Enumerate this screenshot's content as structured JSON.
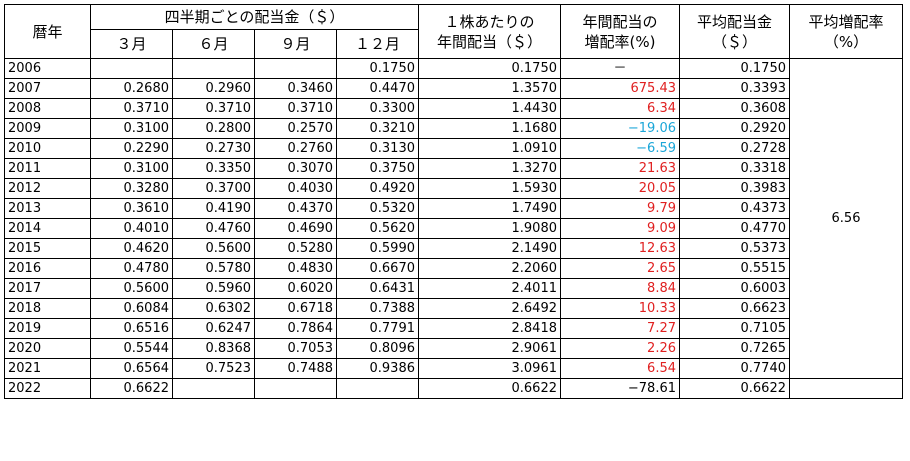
{
  "headers": {
    "year": "暦年",
    "quarterly_group": "四半期ごとの配当金（＄）",
    "q_mar": "３月",
    "q_jun": "６月",
    "q_sep": "９月",
    "q_dec": "１２月",
    "annual_line1": "１株あたりの",
    "annual_line2": "年間配当（＄）",
    "growth_line1": "年間配当の",
    "growth_line2": "増配率(%)",
    "avg_div_line1": "平均配当金",
    "avg_div_line2": "（＄）",
    "avg_growth_line1": "平均増配率",
    "avg_growth_line2": "（%）"
  },
  "avg_growth_value": "6.56",
  "colors": {
    "positive": "#e02020",
    "negative": "#1aa6d8",
    "neutral": "#000000"
  },
  "rows": [
    {
      "year": "2006",
      "mar": "",
      "jun": "",
      "sep": "",
      "dec": "0.1750",
      "annual": "0.1750",
      "growth": "－",
      "growth_sign": "neutral",
      "avg": "0.1750"
    },
    {
      "year": "2007",
      "mar": "0.2680",
      "jun": "0.2960",
      "sep": "0.3460",
      "dec": "0.4470",
      "annual": "1.3570",
      "growth": "675.43",
      "growth_sign": "pos",
      "avg": "0.3393"
    },
    {
      "year": "2008",
      "mar": "0.3710",
      "jun": "0.3710",
      "sep": "0.3710",
      "dec": "0.3300",
      "annual": "1.4430",
      "growth": "6.34",
      "growth_sign": "pos",
      "avg": "0.3608"
    },
    {
      "year": "2009",
      "mar": "0.3100",
      "jun": "0.2800",
      "sep": "0.2570",
      "dec": "0.3210",
      "annual": "1.1680",
      "growth": "−19.06",
      "growth_sign": "neg",
      "avg": "0.2920"
    },
    {
      "year": "2010",
      "mar": "0.2290",
      "jun": "0.2730",
      "sep": "0.2760",
      "dec": "0.3130",
      "annual": "1.0910",
      "growth": "−6.59",
      "growth_sign": "neg",
      "avg": "0.2728"
    },
    {
      "year": "2011",
      "mar": "0.3100",
      "jun": "0.3350",
      "sep": "0.3070",
      "dec": "0.3750",
      "annual": "1.3270",
      "growth": "21.63",
      "growth_sign": "pos",
      "avg": "0.3318"
    },
    {
      "year": "2012",
      "mar": "0.3280",
      "jun": "0.3700",
      "sep": "0.4030",
      "dec": "0.4920",
      "annual": "1.5930",
      "growth": "20.05",
      "growth_sign": "pos",
      "avg": "0.3983"
    },
    {
      "year": "2013",
      "mar": "0.3610",
      "jun": "0.4190",
      "sep": "0.4370",
      "dec": "0.5320",
      "annual": "1.7490",
      "growth": "9.79",
      "growth_sign": "pos",
      "avg": "0.4373"
    },
    {
      "year": "2014",
      "mar": "0.4010",
      "jun": "0.4760",
      "sep": "0.4690",
      "dec": "0.5620",
      "annual": "1.9080",
      "growth": "9.09",
      "growth_sign": "pos",
      "avg": "0.4770"
    },
    {
      "year": "2015",
      "mar": "0.4620",
      "jun": "0.5600",
      "sep": "0.5280",
      "dec": "0.5990",
      "annual": "2.1490",
      "growth": "12.63",
      "growth_sign": "pos",
      "avg": "0.5373"
    },
    {
      "year": "2016",
      "mar": "0.4780",
      "jun": "0.5780",
      "sep": "0.4830",
      "dec": "0.6670",
      "annual": "2.2060",
      "growth": "2.65",
      "growth_sign": "pos",
      "avg": "0.5515"
    },
    {
      "year": "2017",
      "mar": "0.5600",
      "jun": "0.5960",
      "sep": "0.6020",
      "dec": "0.6431",
      "annual": "2.4011",
      "growth": "8.84",
      "growth_sign": "pos",
      "avg": "0.6003"
    },
    {
      "year": "2018",
      "mar": "0.6084",
      "jun": "0.6302",
      "sep": "0.6718",
      "dec": "0.7388",
      "annual": "2.6492",
      "growth": "10.33",
      "growth_sign": "pos",
      "avg": "0.6623"
    },
    {
      "year": "2019",
      "mar": "0.6516",
      "jun": "0.6247",
      "sep": "0.7864",
      "dec": "0.7791",
      "annual": "2.8418",
      "growth": "7.27",
      "growth_sign": "pos",
      "avg": "0.7105"
    },
    {
      "year": "2020",
      "mar": "0.5544",
      "jun": "0.8368",
      "sep": "0.7053",
      "dec": "0.8096",
      "annual": "2.9061",
      "growth": "2.26",
      "growth_sign": "pos",
      "avg": "0.7265"
    },
    {
      "year": "2021",
      "mar": "0.6564",
      "jun": "0.7523",
      "sep": "0.7488",
      "dec": "0.9386",
      "annual": "3.0961",
      "growth": "6.54",
      "growth_sign": "pos",
      "avg": "0.7740"
    },
    {
      "year": "2022",
      "mar": "0.6622",
      "jun": "",
      "sep": "",
      "dec": "",
      "annual": "0.6622",
      "growth": "−78.61",
      "growth_sign": "neutral",
      "avg": "0.6622"
    }
  ]
}
